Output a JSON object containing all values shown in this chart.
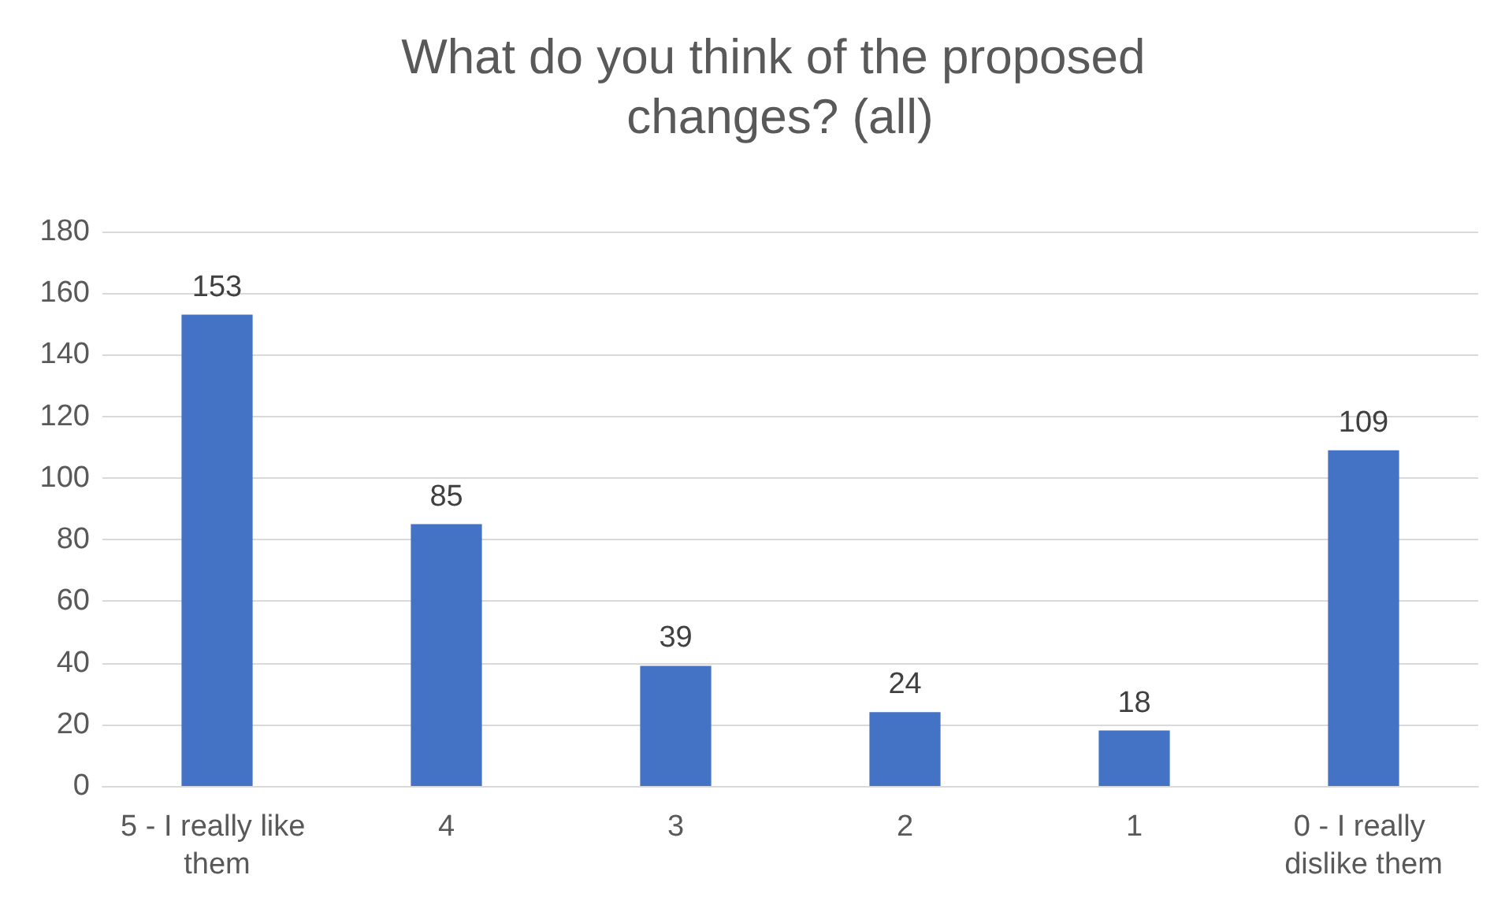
{
  "chart_data": {
    "type": "bar",
    "title": "What do you think of the proposed changes? (all)",
    "categories": [
      "5 - I really like them",
      "4",
      "3",
      "2",
      "1",
      "0 - I really dislike them"
    ],
    "values": [
      153,
      85,
      39,
      24,
      18,
      109
    ],
    "color": "#4472c4",
    "ylim": [
      0,
      180
    ],
    "yticks": [
      0,
      20,
      40,
      60,
      80,
      100,
      120,
      140,
      160,
      180
    ],
    "grid": "y",
    "data_labels": true
  }
}
